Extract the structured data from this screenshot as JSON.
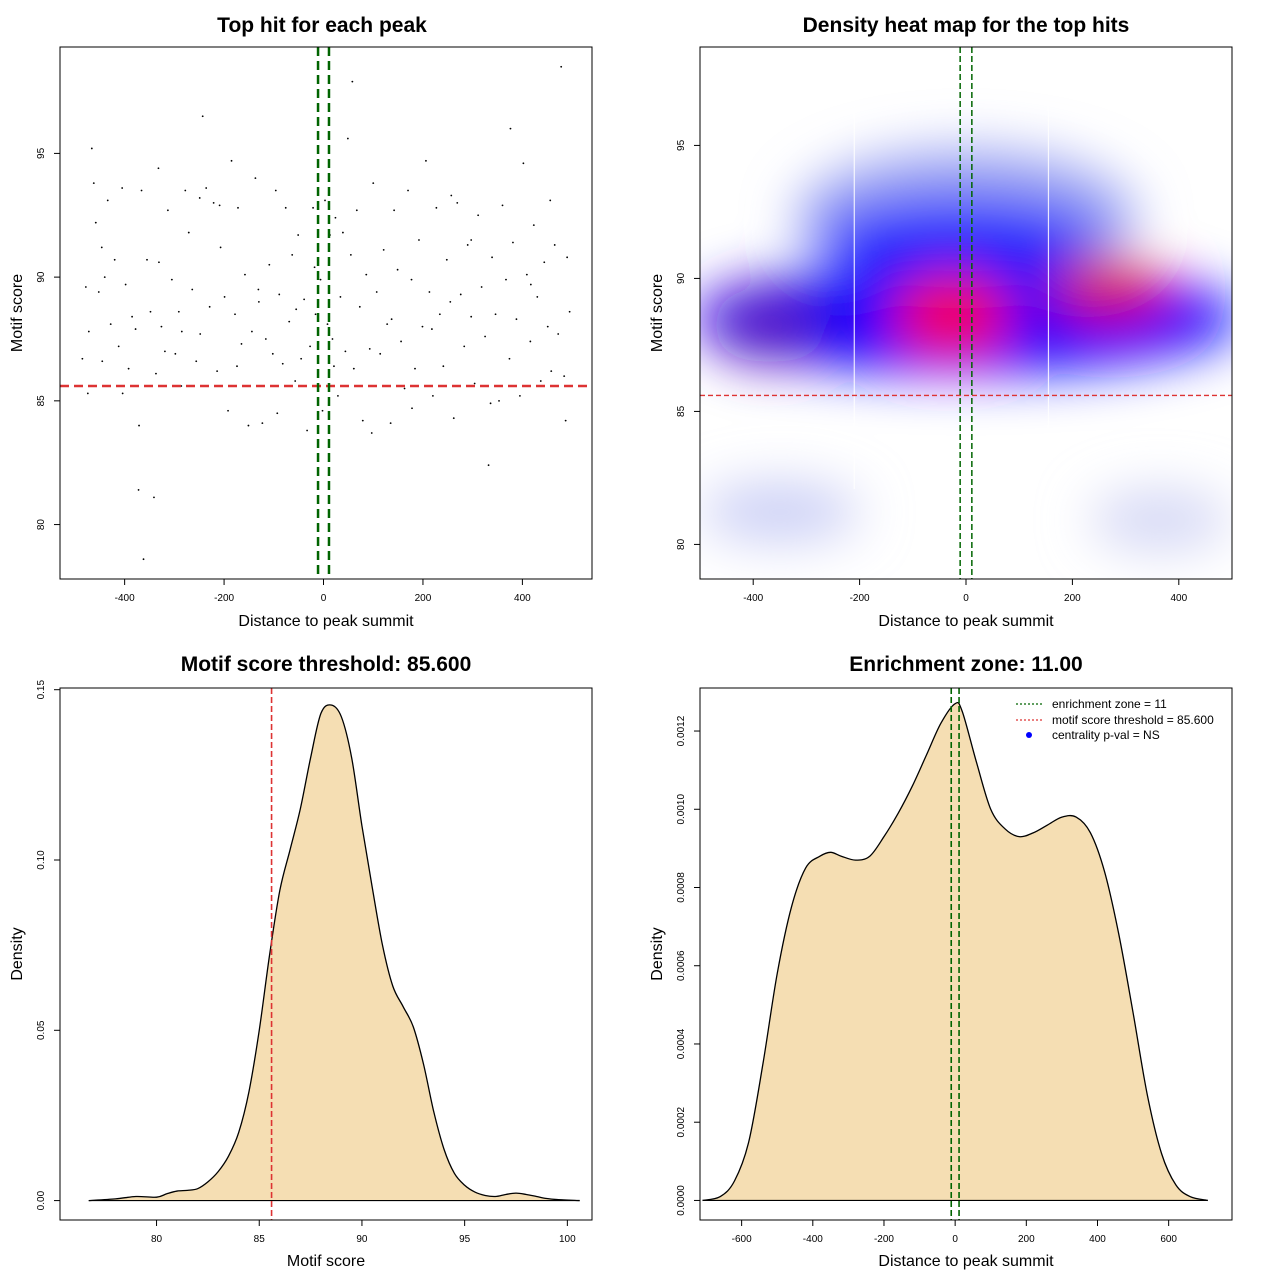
{
  "chart_data": [
    {
      "id": "scatter",
      "type": "scatter",
      "title": "Top hit for each peak",
      "xlabel": "Distance to peak summit",
      "ylabel": "Motif score",
      "xlim": [
        -530,
        540
      ],
      "ylim": [
        77.8,
        99.3
      ],
      "xticks": [
        -400,
        -200,
        0,
        200,
        400
      ],
      "yticks": [
        80,
        85,
        90,
        95
      ],
      "threshold_y": 85.6,
      "zone_x": [
        -11,
        11
      ],
      "points": [
        [
          -485,
          86.7
        ],
        [
          -478,
          89.6
        ],
        [
          -472,
          87.8
        ],
        [
          -466,
          95.2
        ],
        [
          -462,
          93.8
        ],
        [
          -458,
          92.2
        ],
        [
          -452,
          89.4
        ],
        [
          -445,
          86.6
        ],
        [
          -440,
          90.0
        ],
        [
          -434,
          93.1
        ],
        [
          -428,
          88.1
        ],
        [
          -420,
          90.7
        ],
        [
          -412,
          87.2
        ],
        [
          -405,
          93.6
        ],
        [
          -398,
          89.7
        ],
        [
          -392,
          86.3
        ],
        [
          -385,
          88.4
        ],
        [
          -378,
          87.9
        ],
        [
          -372,
          81.4
        ],
        [
          -366,
          93.5
        ],
        [
          -362,
          78.6
        ],
        [
          -355,
          90.7
        ],
        [
          -348,
          88.6
        ],
        [
          -341,
          81.1
        ],
        [
          -337,
          86.1
        ],
        [
          -332,
          94.4
        ],
        [
          -326,
          88.0
        ],
        [
          -319,
          87.0
        ],
        [
          -313,
          92.7
        ],
        [
          -305,
          89.9
        ],
        [
          -298,
          86.9
        ],
        [
          -291,
          88.6
        ],
        [
          -285,
          87.8
        ],
        [
          -278,
          93.5
        ],
        [
          -271,
          91.8
        ],
        [
          -264,
          89.5
        ],
        [
          -256,
          86.6
        ],
        [
          -249,
          93.2
        ],
        [
          -243,
          96.5
        ],
        [
          -236,
          93.6
        ],
        [
          -229,
          88.8
        ],
        [
          -221,
          93.0
        ],
        [
          -214,
          86.2
        ],
        [
          -207,
          91.2
        ],
        [
          -199,
          89.2
        ],
        [
          -192,
          84.6
        ],
        [
          -185,
          94.7
        ],
        [
          -178,
          88.5
        ],
        [
          -172,
          92.8
        ],
        [
          -165,
          87.3
        ],
        [
          -158,
          90.1
        ],
        [
          -151,
          84.0
        ],
        [
          -144,
          87.8
        ],
        [
          -137,
          94.0
        ],
        [
          -130,
          89.0
        ],
        [
          -123,
          84.1
        ],
        [
          -116,
          87.5
        ],
        [
          -109,
          90.5
        ],
        [
          -102,
          86.9
        ],
        [
          -96,
          93.5
        ],
        [
          -89,
          89.3
        ],
        [
          -82,
          86.5
        ],
        [
          -76,
          92.8
        ],
        [
          -69,
          88.2
        ],
        [
          -63,
          90.9
        ],
        [
          -57,
          85.8
        ],
        [
          -51,
          91.7
        ],
        [
          -45,
          86.7
        ],
        [
          -39,
          89.1
        ],
        [
          -33,
          83.8
        ],
        [
          -27,
          87.2
        ],
        [
          -21,
          92.8
        ],
        [
          -16,
          88.5
        ],
        [
          -11,
          86.8
        ],
        [
          -6,
          89.9
        ],
        [
          -2,
          84.6
        ],
        [
          3,
          93.1
        ],
        [
          8,
          88.1
        ],
        [
          13,
          91.7
        ],
        [
          18,
          87.5
        ],
        [
          24,
          92.4
        ],
        [
          29,
          85.2
        ],
        [
          34,
          89.2
        ],
        [
          39,
          91.8
        ],
        [
          44,
          87.0
        ],
        [
          49,
          95.6
        ],
        [
          55,
          90.9
        ],
        [
          61,
          86.3
        ],
        [
          67,
          92.7
        ],
        [
          73,
          88.8
        ],
        [
          79,
          84.2
        ],
        [
          86,
          90.1
        ],
        [
          93,
          87.1
        ],
        [
          100,
          93.8
        ],
        [
          107,
          89.4
        ],
        [
          114,
          86.9
        ],
        [
          121,
          91.1
        ],
        [
          128,
          88.1
        ],
        [
          135,
          84.1
        ],
        [
          142,
          92.7
        ],
        [
          149,
          90.3
        ],
        [
          156,
          87.4
        ],
        [
          163,
          85.5
        ],
        [
          170,
          93.5
        ],
        [
          177,
          89.9
        ],
        [
          184,
          86.3
        ],
        [
          192,
          91.5
        ],
        [
          199,
          88.0
        ],
        [
          206,
          94.7
        ],
        [
          213,
          89.4
        ],
        [
          220,
          85.2
        ],
        [
          227,
          92.8
        ],
        [
          234,
          88.5
        ],
        [
          241,
          86.4
        ],
        [
          248,
          90.7
        ],
        [
          255,
          89.0
        ],
        [
          262,
          84.3
        ],
        [
          269,
          93.0
        ],
        [
          276,
          89.3
        ],
        [
          283,
          87.2
        ],
        [
          290,
          91.3
        ],
        [
          297,
          88.4
        ],
        [
          304,
          85.7
        ],
        [
          311,
          92.5
        ],
        [
          318,
          89.6
        ],
        [
          325,
          87.6
        ],
        [
          332,
          82.4
        ],
        [
          339,
          90.8
        ],
        [
          346,
          88.5
        ],
        [
          353,
          85.0
        ],
        [
          360,
          92.9
        ],
        [
          367,
          89.9
        ],
        [
          374,
          86.7
        ],
        [
          381,
          91.4
        ],
        [
          388,
          88.3
        ],
        [
          395,
          85.2
        ],
        [
          402,
          94.6
        ],
        [
          409,
          90.1
        ],
        [
          416,
          87.4
        ],
        [
          423,
          92.1
        ],
        [
          430,
          89.2
        ],
        [
          437,
          85.8
        ],
        [
          444,
          90.6
        ],
        [
          451,
          88.0
        ],
        [
          458,
          86.2
        ],
        [
          465,
          91.3
        ],
        [
          472,
          87.7
        ],
        [
          478,
          98.5
        ],
        [
          484,
          86.0
        ],
        [
          490,
          90.8
        ],
        [
          495,
          88.6
        ],
        [
          -474,
          85.3
        ],
        [
          -446,
          91.2
        ],
        [
          -404,
          85.3
        ],
        [
          -371,
          84.0
        ],
        [
          -331,
          90.6
        ],
        [
          -286,
          85.6
        ],
        [
          -248,
          87.7
        ],
        [
          -209,
          92.9
        ],
        [
          -174,
          86.4
        ],
        [
          -131,
          89.5
        ],
        [
          -93,
          84.5
        ],
        [
          -55,
          88.7
        ],
        [
          -18,
          90.4
        ],
        [
          21,
          86.4
        ],
        [
          58,
          97.9
        ],
        [
          97,
          83.7
        ],
        [
          137,
          88.3
        ],
        [
          178,
          84.7
        ],
        [
          218,
          87.9
        ],
        [
          257,
          93.3
        ],
        [
          297,
          91.5
        ],
        [
          336,
          84.9
        ],
        [
          376,
          96.0
        ],
        [
          417,
          89.7
        ],
        [
          456,
          93.1
        ],
        [
          487,
          84.2
        ]
      ]
    },
    {
      "id": "heatmap",
      "type": "heatmap",
      "title": "Density heat map for the top hits",
      "xlabel": "Distance to peak summit",
      "ylabel": "Motif score",
      "xlim": [
        -500,
        500
      ],
      "ylim": [
        78.7,
        98.7
      ],
      "xticks": [
        -400,
        -200,
        0,
        200,
        400
      ],
      "yticks": [
        80,
        85,
        90,
        95
      ],
      "threshold_y": 85.6,
      "zone_x": [
        -11,
        11
      ],
      "vlines_x": [
        -210,
        155
      ],
      "colors": [
        "#ffffff",
        "#0000ff",
        "#ff0000"
      ]
    },
    {
      "id": "score_density",
      "type": "area",
      "title": "Motif score threshold: 85.600",
      "xlabel": "Motif score",
      "ylabel": "Density",
      "xlim": [
        75.3,
        101.2
      ],
      "ylim": [
        -0.0057,
        0.1505
      ],
      "xticks": [
        80,
        85,
        90,
        95,
        100
      ],
      "ytick_values": [
        0,
        0.05,
        0.1,
        0.15
      ],
      "ytick_labels": [
        "0.00",
        "0.05",
        "0.10",
        "0.15"
      ],
      "threshold_x": 85.6,
      "fill": "#f5deb3",
      "x": [
        76.7,
        78.0,
        79.0,
        80.0,
        80.5,
        81.0,
        81.5,
        82.0,
        82.5,
        83.0,
        83.5,
        84.0,
        84.5,
        85.0,
        85.5,
        86.0,
        86.5,
        87.0,
        87.5,
        88.0,
        88.5,
        89.0,
        89.5,
        90.0,
        90.5,
        91.0,
        91.5,
        92.0,
        92.5,
        93.0,
        93.5,
        94.0,
        94.5,
        95.0,
        95.5,
        96.0,
        96.5,
        97.0,
        97.5,
        98.0,
        98.5,
        99.0,
        99.5,
        100.6
      ],
      "y": [
        0.0,
        0.0005,
        0.0012,
        0.001,
        0.002,
        0.0028,
        0.003,
        0.0035,
        0.0055,
        0.0085,
        0.013,
        0.02,
        0.032,
        0.05,
        0.072,
        0.091,
        0.103,
        0.115,
        0.13,
        0.143,
        0.1455,
        0.142,
        0.13,
        0.11,
        0.092,
        0.075,
        0.063,
        0.057,
        0.051,
        0.04,
        0.026,
        0.015,
        0.008,
        0.0045,
        0.0025,
        0.0015,
        0.0012,
        0.0018,
        0.0022,
        0.0018,
        0.0012,
        0.0006,
        0.0003,
        0.0
      ]
    },
    {
      "id": "distance_density",
      "type": "area",
      "title": "Enrichment zone: 11.00",
      "xlabel": "Distance to peak summit",
      "ylabel": "Density",
      "xlim": [
        -717,
        778
      ],
      "ylim": [
        -5e-05,
        0.00131
      ],
      "xticks": [
        -600,
        -400,
        -200,
        0,
        200,
        400,
        600
      ],
      "ytick_values": [
        0,
        0.0002,
        0.0004,
        0.0006,
        0.0008,
        0.001,
        0.0012
      ],
      "ytick_labels": [
        "0.0000",
        "0.0002",
        "0.0004",
        "0.0006",
        "0.0008",
        "0.0010",
        "0.0012"
      ],
      "zone_x": [
        -11,
        11
      ],
      "fill": "#f5deb3",
      "x": [
        -710,
        -660,
        -620,
        -580,
        -540,
        -500,
        -460,
        -420,
        -380,
        -350,
        -320,
        -280,
        -240,
        -200,
        -160,
        -120,
        -80,
        -40,
        0,
        20,
        60,
        100,
        140,
        180,
        220,
        260,
        300,
        340,
        380,
        420,
        460,
        500,
        540,
        580,
        620,
        660,
        710
      ],
      "y": [
        0.0,
        1e-05,
        5e-05,
        0.00015,
        0.00035,
        0.00058,
        0.00075,
        0.00085,
        0.00088,
        0.00089,
        0.00088,
        0.00087,
        0.00088,
        0.00093,
        0.00099,
        0.00106,
        0.00114,
        0.00122,
        0.00127,
        0.00125,
        0.00112,
        0.001,
        0.00095,
        0.00093,
        0.00094,
        0.00096,
        0.00098,
        0.00098,
        0.00094,
        0.00084,
        0.00068,
        0.00048,
        0.00027,
        0.00012,
        4e-05,
        1e-05,
        0.0
      ]
    }
  ],
  "legend": {
    "enrichment": "enrichment zone = 11",
    "threshold": "motif score threshold = 85.600",
    "centrality": "centrality p-val = NS"
  },
  "colors": {
    "threshold": "#dd3333",
    "zone": "#006400",
    "centrality_marker": "#0000ff",
    "fill": "#f5deb3"
  }
}
